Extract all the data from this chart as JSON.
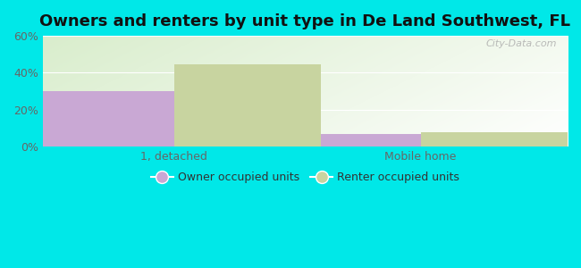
{
  "title": "Owners and renters by unit type in De Land Southwest, FL",
  "categories": [
    "1, detached",
    "Mobile home"
  ],
  "owner_values": [
    30.0,
    7.0
  ],
  "renter_values": [
    44.5,
    8.0
  ],
  "owner_color": "#c9a8d4",
  "renter_color": "#c8d4a0",
  "background_color": "#00e8e8",
  "ylim": [
    0,
    60
  ],
  "yticks": [
    0,
    20,
    40,
    60
  ],
  "ytick_labels": [
    "0%",
    "20%",
    "40%",
    "60%"
  ],
  "bar_width": 0.28,
  "legend_owner": "Owner occupied units",
  "legend_renter": "Renter occupied units",
  "watermark": "City-Data.com",
  "title_fontsize": 13,
  "axis_fontsize": 9,
  "legend_fontsize": 9,
  "group_positions": [
    0.25,
    0.72
  ],
  "xlim": [
    0.0,
    1.0
  ]
}
